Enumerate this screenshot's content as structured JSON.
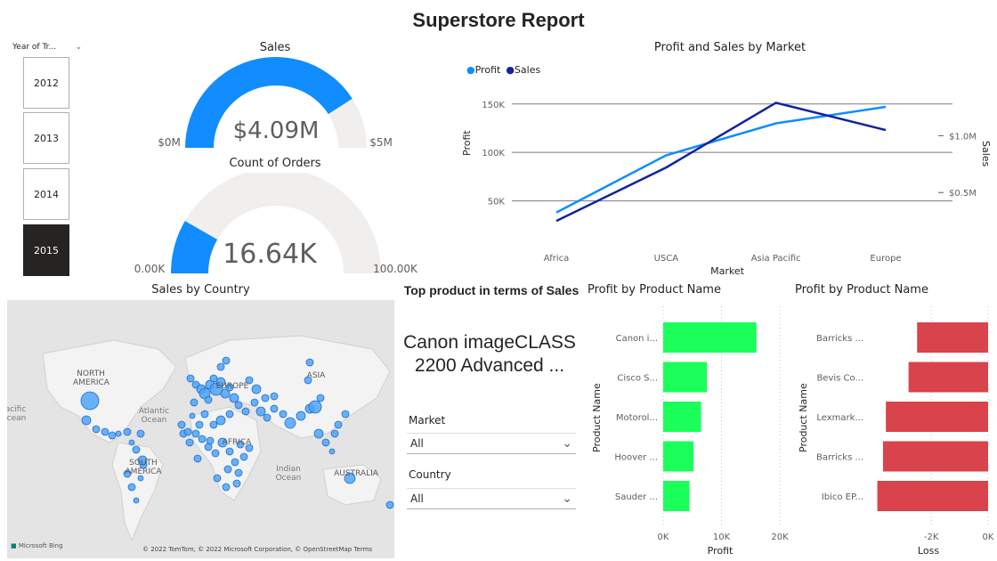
{
  "report": {
    "title": "Superstore Report"
  },
  "slicer": {
    "header": "Year of Tr...",
    "options": [
      "2012",
      "2013",
      "2014",
      "2015"
    ],
    "selected": "2015"
  },
  "sales_gauge": {
    "title": "Sales",
    "value_label": "$4.09M",
    "min_label": "$0M",
    "max_label": "$5M",
    "fill_fraction": 0.818,
    "color": "#118DFF"
  },
  "orders_gauge": {
    "title": "Count of Orders",
    "value_label": "16.64K",
    "min_label": "0.00K",
    "max_label": "100.00K",
    "fill_fraction": 0.1664,
    "color": "#118DFF"
  },
  "line_chart": {
    "title": "Profit and Sales by Market",
    "legend": [
      {
        "name": "Profit",
        "color": "#118DFF"
      },
      {
        "name": "Sales",
        "color": "#12239E"
      }
    ],
    "xlabel": "Market",
    "ylabel_left": "Profit",
    "ylabel_right": "Sales",
    "left_ticks": [
      "150K",
      "100K",
      "50K"
    ],
    "right_ticks": [
      "$1.0M",
      "$0.5M"
    ]
  },
  "map": {
    "title": "Sales by Country",
    "labels": {
      "north_america": "NORTH AMERICA",
      "south_america": "SOUTH AMERICA",
      "europe": "EUROPE",
      "asia": "ASIA",
      "australia": "AUSTRALIA",
      "atlantic": "Atlantic Ocean",
      "indian": "Indian Ocean",
      "pacific": "Pacific Ocean",
      "africa": "AFRICA"
    },
    "attribution": "© 2022 TomTom, © 2022 Microsoft Corporation, © OpenStreetMap  Terms",
    "bing": "Microsoft Bing"
  },
  "top_product": {
    "title": "Top product in terms of Sales",
    "value": "Canon imageCLASS 2200 Advanced ..."
  },
  "filters": {
    "market": {
      "label": "Market",
      "value": "All"
    },
    "country": {
      "label": "Country",
      "value": "All"
    }
  },
  "profit_chart": {
    "title": "Profit by Product Name",
    "ylabel": "Product Name",
    "xlabel": "Profit",
    "ticks": [
      "0K",
      "10K",
      "20K"
    ],
    "bar_color": "#1AFF5A"
  },
  "loss_chart": {
    "title": "Profit by Product Name",
    "ylabel": "Product Name",
    "xlabel": "Loss",
    "ticks": [
      "-2K",
      "0K"
    ],
    "bar_color": "#D9434B"
  },
  "chart_data": [
    {
      "type": "line",
      "title": "Profit and Sales by Market",
      "categories": [
        "Africa",
        "USCA",
        "Asia Pacific",
        "Europe"
      ],
      "xlabel": "Market",
      "series": [
        {
          "name": "Profit",
          "axis": "left",
          "values": [
            38000,
            97000,
            130000,
            147000
          ]
        },
        {
          "name": "Sales",
          "axis": "right",
          "values": [
            0.25,
            0.72,
            1.29,
            1.05
          ]
        }
      ],
      "ylim_left": [
        0,
        170000
      ],
      "ylim_right_millions": [
        0,
        1.45
      ],
      "grid": true,
      "legend": "top-left"
    },
    {
      "type": "bar",
      "title": "Profit by Product Name",
      "orientation": "horizontal",
      "categories": [
        "Canon i...",
        "Cisco S...",
        "Motorol...",
        "Hoover ...",
        "Sauder ..."
      ],
      "values": [
        16000,
        7500,
        6500,
        5200,
        4500
      ],
      "xlabel": "Profit",
      "ylabel": "Product Name",
      "xlim": [
        0,
        20000
      ]
    },
    {
      "type": "bar",
      "title": "Profit by Product Name",
      "orientation": "horizontal",
      "categories": [
        "Barricks ...",
        "Bevis Co...",
        "Lexmark...",
        "Barricks ...",
        "Ibico EP..."
      ],
      "values": [
        -2500,
        -2800,
        -3600,
        -3700,
        -3900
      ],
      "xlabel": "Loss",
      "ylabel": "Product Name",
      "xlim": [
        -4000,
        0
      ]
    }
  ]
}
